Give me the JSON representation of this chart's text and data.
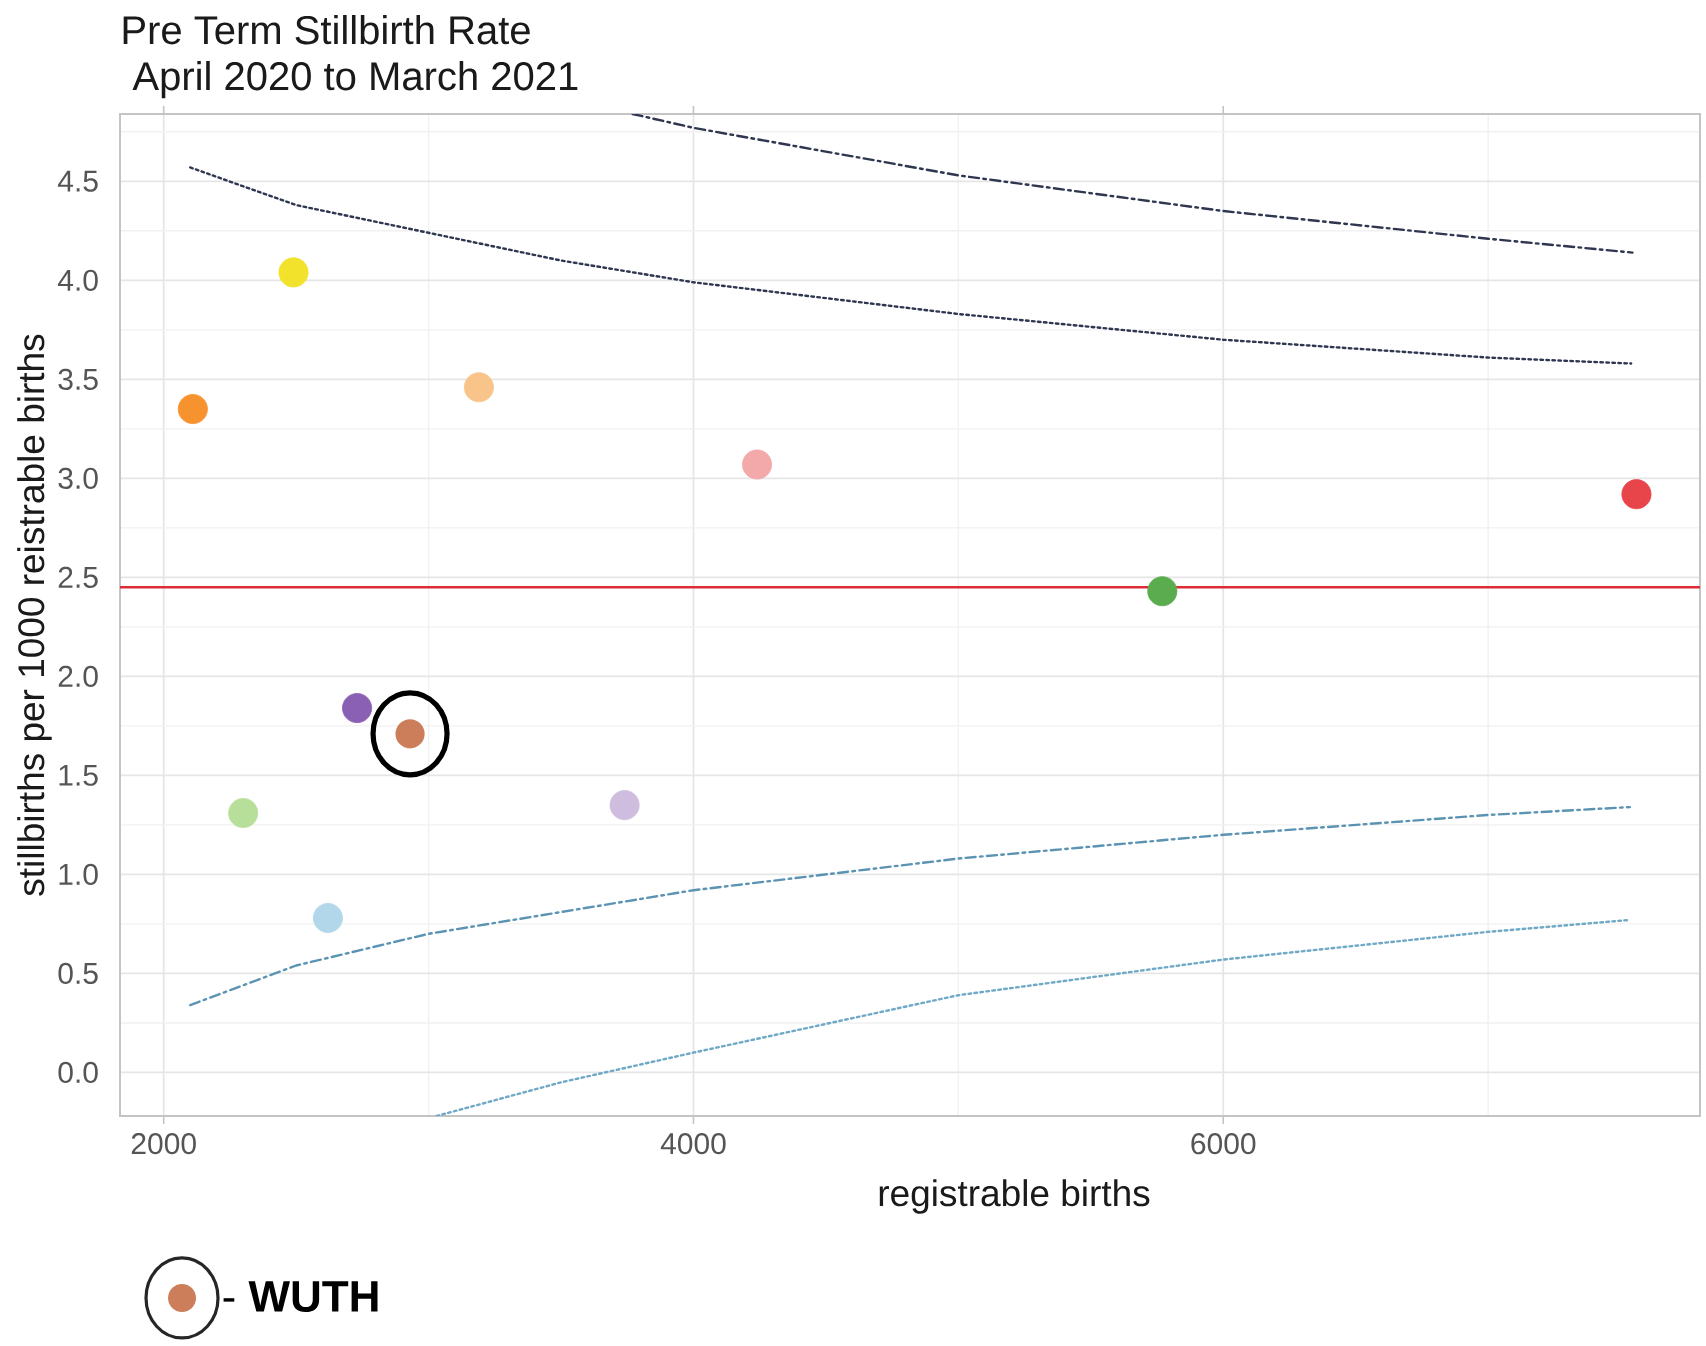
{
  "chart_data": {
    "type": "scatter",
    "title": "Pre Term Stillbirth Rate",
    "subtitle": "April 2020 to March 2021",
    "xlabel": "registrable births",
    "ylabel": "stillbirths per 1000 reistrable births",
    "xlim": [
      1835,
      7800
    ],
    "ylim": [
      -0.22,
      4.84
    ],
    "xticks": [
      2000,
      4000,
      6000
    ],
    "yticks": [
      {
        "value": 0,
        "label": "0.0"
      },
      0.5,
      {
        "value": 1,
        "label": "1.0"
      },
      1.5,
      {
        "value": 2,
        "label": "2.0"
      },
      2.5,
      {
        "value": 3,
        "label": "3.0"
      },
      3.5,
      {
        "value": 4,
        "label": "4.0"
      },
      4.5
    ],
    "grid": true,
    "legend": "bottom left",
    "series": [
      {
        "type": "line",
        "color": "#2e3650",
        "line_style": "dotted",
        "x": [
          2100,
          2500,
          3000,
          3500,
          4000,
          5000,
          6000,
          7000,
          7540
        ],
        "values": [
          4.57,
          4.38,
          4.24,
          4.1,
          3.99,
          3.83,
          3.7,
          3.61,
          3.58
        ]
      },
      {
        "type": "line",
        "color": "#2e3650",
        "line_style": "dashdot",
        "x": [
          3770,
          4000,
          5000,
          6000,
          7000,
          7545
        ],
        "values": [
          4.84,
          4.77,
          4.53,
          4.35,
          4.21,
          4.14
        ]
      },
      {
        "type": "line",
        "color": "#5b93b3",
        "line_style": "dashdot",
        "x": [
          2100,
          2500,
          3000,
          3500,
          4000,
          5000,
          6000,
          7000,
          7535
        ],
        "values": [
          0.34,
          0.54,
          0.7,
          0.81,
          0.92,
          1.08,
          1.2,
          1.3,
          1.34
        ]
      },
      {
        "type": "line",
        "color": "#6fa9c6",
        "line_style": "dotted",
        "x": [
          3030,
          3500,
          4000,
          5000,
          6000,
          7000,
          7535
        ],
        "values": [
          -0.22,
          -0.05,
          0.1,
          0.39,
          0.57,
          0.71,
          0.77
        ]
      },
      {
        "marker": "circle",
        "x": [
          2110,
          2490,
          3190,
          4240,
          7560,
          5770,
          2730,
          2300,
          3740,
          2620
        ],
        "values": [
          3.35,
          4.04,
          3.46,
          3.07,
          2.92,
          2.43,
          1.84,
          1.31,
          1.35,
          0.78
        ],
        "colors": [
          "#f7932e",
          "#f2e22c",
          "#f8c48a",
          "#f3a8aa",
          "#e8454b",
          "#5aac4e",
          "#8a60b4",
          "#b7df99",
          "#cfbde0",
          "#b3d7ea"
        ]
      },
      {
        "name": "- **WUTH**",
        "marker": "circle",
        "color": "#cc7e5a",
        "x": [
          2930
        ],
        "values": [
          1.71
        ]
      }
    ],
    "ref_lines": [
      {
        "axis": "y",
        "value": 2.45,
        "color": "#dc2c35"
      }
    ]
  }
}
